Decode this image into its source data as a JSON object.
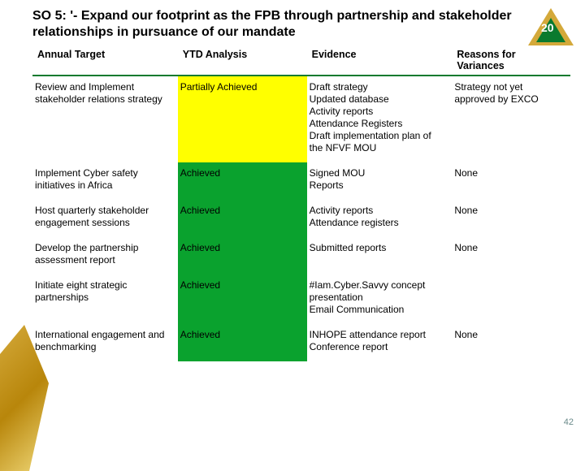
{
  "title": "SO 5: '- Expand our footprint as the FPB through partnership and stakeholder  relationships in pursuance of our mandate",
  "columns": [
    "Annual Target",
    "YTD Analysis",
    "Evidence",
    "Reasons for Variances"
  ],
  "colors": {
    "achieved_bg": "#0aa22e",
    "partial_bg": "#ffff00",
    "header_rule": "#0a7a2e",
    "text": "#000000",
    "background": "#ffffff"
  },
  "rows": [
    {
      "target": "Review and  Implement stakeholder relations strategy",
      "ytd": "Partially Achieved",
      "ytd_status": "partial",
      "evidence": "Draft strategy\nUpdated database\nActivity reports\nAttendance Registers\nDraft implementation plan of the NFVF MOU",
      "reasons": "Strategy not yet approved by EXCO"
    },
    {
      "target": "Implement Cyber safety initiatives in Africa",
      "ytd": "Achieved",
      "ytd_status": "achieved",
      "evidence": "Signed MOU\nReports",
      "reasons": "None"
    },
    {
      "target": "Host quarterly stakeholder engagement sessions",
      "ytd": "Achieved",
      "ytd_status": "achieved",
      "evidence": "Activity reports\nAttendance registers",
      "reasons": "None"
    },
    {
      "target": "Develop the partnership assessment report",
      "ytd": "Achieved",
      "ytd_status": "achieved",
      "evidence": "Submitted reports",
      "reasons": "None"
    },
    {
      "target": "Initiate eight strategic partnerships",
      "ytd": "Achieved",
      "ytd_status": "achieved",
      "evidence": "#Iam.Cyber.Savvy concept presentation\nEmail Communication",
      "reasons": ""
    },
    {
      "target": "International engagement and benchmarking",
      "ytd": "Achieved",
      "ytd_status": "achieved",
      "evidence": "INHOPE attendance report\nConference report",
      "reasons": "None"
    }
  ],
  "page_number": "42",
  "logo_text": "20"
}
